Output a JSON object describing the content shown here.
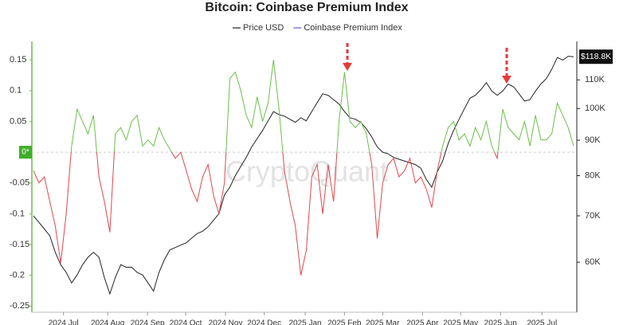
{
  "chart_data": {
    "type": "line",
    "title": "Bitcoin: Coinbase Premium Index",
    "watermark": "CryptoQuant",
    "xlim": [
      0,
      99
    ],
    "xticks": [
      {
        "value": 5.5,
        "label": "2024 Jul"
      },
      {
        "value": 13.6,
        "label": "2024 Aug"
      },
      {
        "value": 20.9,
        "label": "2024 Sep"
      },
      {
        "value": 27.9,
        "label": "2024 Oct"
      },
      {
        "value": 35.2,
        "label": "2024 Nov"
      },
      {
        "value": 42.3,
        "label": "2024 Dec"
      },
      {
        "value": 49.8,
        "label": "2025 Jan"
      },
      {
        "value": 57,
        "label": "2025 Feb"
      },
      {
        "value": 64,
        "label": "2025 Mar"
      },
      {
        "value": 71.3,
        "label": "2025 Apr"
      },
      {
        "value": 78.3,
        "label": "2025 May"
      },
      {
        "value": 85.6,
        "label": "2025 Jun"
      },
      {
        "value": 93.2,
        "label": "2025 Jul"
      }
    ],
    "ylim": [
      -0.26,
      0.18
    ],
    "yticks": [
      0.15,
      0.1,
      0.05,
      {
        "value": 0,
        "label": "0*"
      },
      -0.05,
      -0.1,
      -0.15,
      -0.2,
      -0.25
    ],
    "y2lim": [
      50800,
      125000
    ],
    "y2log": true,
    "y2ticks": [
      {
        "value": 110000,
        "label": "110K"
      },
      {
        "value": 100000,
        "label": "100K"
      },
      {
        "value": 90000,
        "label": "90K"
      },
      {
        "value": 80000,
        "label": "80K"
      },
      {
        "value": 70000,
        "label": "70K"
      },
      {
        "value": 60000,
        "label": "60K"
      }
    ],
    "last_price": {
      "value": 118800,
      "label": "$118.8K"
    },
    "zero_line": true,
    "series": [
      {
        "name": "Price USD",
        "color": "#222222",
        "axis": "y2",
        "values": [
          70000,
          68500,
          67000,
          65500,
          62000,
          59500,
          58000,
          56000,
          57500,
          59500,
          61000,
          62000,
          61000,
          57000,
          54000,
          57000,
          59500,
          59000,
          59000,
          58000,
          57500,
          56000,
          54500,
          58000,
          60500,
          62500,
          63000,
          63500,
          64000,
          65000,
          66000,
          66500,
          67500,
          69000,
          70500,
          75000,
          77000,
          80000,
          82500,
          85000,
          88000,
          90500,
          93000,
          96000,
          99000,
          98000,
          97500,
          96500,
          95500,
          97000,
          96000,
          99000,
          102000,
          105000,
          104500,
          103000,
          101500,
          99000,
          97000,
          96500,
          95500,
          93500,
          91000,
          88000,
          86500,
          86000,
          85000,
          84500,
          84000,
          83500,
          83000,
          82000,
          79000,
          77000,
          81000,
          84000,
          89000,
          93000,
          96500,
          100000,
          103500,
          104500,
          106500,
          109000,
          106000,
          104500,
          106000,
          108500,
          107500,
          105000,
          102500,
          103000,
          106000,
          108500,
          110500,
          114000,
          118500,
          117500,
          119000,
          118800
        ]
      },
      {
        "name": "Coinbase Premium Index",
        "color": "#6a5acd",
        "positive_color": "#6abf4b",
        "negative_color": "#e0474c",
        "values": [
          -0.03,
          -0.05,
          -0.04,
          -0.08,
          -0.12,
          -0.18,
          -0.1,
          0.01,
          0.07,
          0.05,
          0.03,
          0.06,
          -0.04,
          -0.08,
          -0.13,
          0.03,
          0.04,
          0.02,
          0.05,
          0.06,
          0.01,
          0.02,
          0.01,
          0.04,
          0.02,
          0.005,
          -0.01,
          0.0,
          -0.03,
          -0.06,
          -0.08,
          -0.04,
          -0.02,
          -0.07,
          -0.1,
          -0.05,
          0.12,
          0.13,
          0.1,
          0.06,
          0.04,
          0.09,
          0.05,
          0.08,
          0.15,
          0.07,
          -0.03,
          -0.08,
          -0.12,
          -0.2,
          -0.16,
          -0.04,
          -0.02,
          -0.1,
          -0.02,
          -0.08,
          0.05,
          0.13,
          0.05,
          0.04,
          0.05,
          0.03,
          -0.02,
          -0.14,
          -0.05,
          -0.02,
          -0.01,
          -0.04,
          -0.03,
          -0.01,
          -0.05,
          -0.04,
          -0.06,
          -0.09,
          -0.03,
          0.01,
          0.04,
          0.05,
          0.02,
          0.03,
          0.01,
          0.04,
          0.02,
          0.05,
          0.01,
          -0.01,
          0.07,
          0.04,
          0.03,
          0.02,
          0.05,
          0.01,
          0.06,
          0.02,
          0.02,
          0.03,
          0.08,
          0.06,
          0.04,
          0.01
        ]
      }
    ]
  }
}
